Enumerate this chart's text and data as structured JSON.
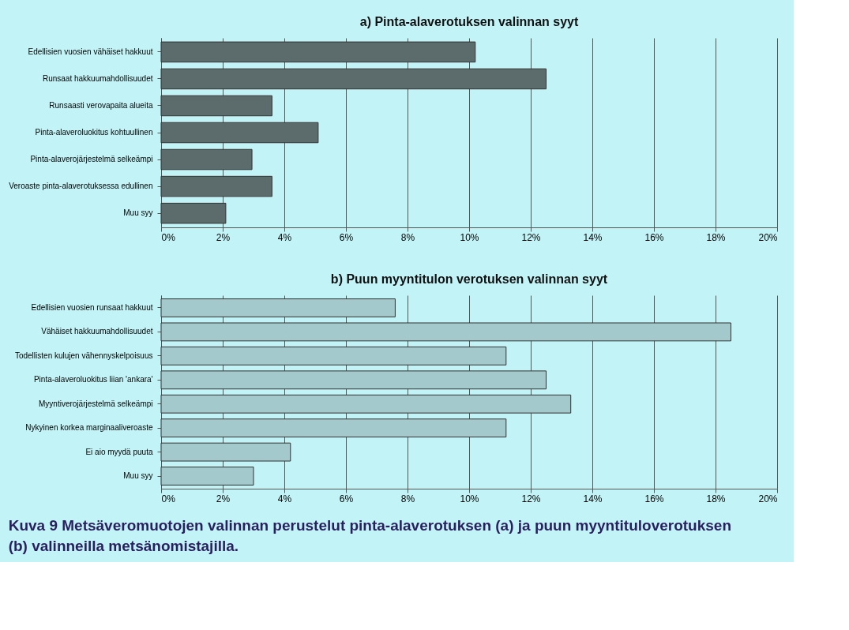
{
  "chart_data": [
    {
      "type": "bar",
      "orientation": "horizontal",
      "title": "a) Pinta-alaverotuksen valinnan syyt",
      "categories": [
        "Edellisien vuosien vähäiset hakkuut",
        "Runsaat hakkuumahdollisuudet",
        "Runsaasti verovapaita alueita",
        "Pinta-alaveroluokitus kohtuullinen",
        "Pinta-alaverojärjestelmä selkeämpi",
        "Veroaste pinta-alaverotuksessa edullinen",
        "Muu syy"
      ],
      "values": [
        10.2,
        12.5,
        3.6,
        5.1,
        2.95,
        3.6,
        2.1
      ],
      "color": "#5c6b6b",
      "xlim": [
        0,
        20
      ],
      "xticks": [
        {
          "value": 0,
          "label": "0%"
        },
        {
          "value": 2,
          "label": "2%"
        },
        {
          "value": 4,
          "label": "4%"
        },
        {
          "value": 6,
          "label": "6%"
        },
        {
          "value": 8,
          "label": "8%"
        },
        {
          "value": 10,
          "label": "10%"
        },
        {
          "value": 12,
          "label": "12%"
        },
        {
          "value": 14,
          "label": "14%"
        },
        {
          "value": 16,
          "label": "16%"
        },
        {
          "value": 18,
          "label": "18%"
        },
        {
          "value": 20,
          "label": "20%"
        }
      ],
      "grid": "x"
    },
    {
      "type": "bar",
      "orientation": "horizontal",
      "title": "b) Puun myyntitulon verotuksen valinnan syyt",
      "categories": [
        "Edellisien vuosien runsaat hakkuut",
        "Vähäiset hakkuumahdollisuudet",
        "Todellisten kulujen vähennyskelpoisuus",
        "Pinta-alaveroluokitus liian 'ankara'",
        "Myyntiverojärjestelmä selkeämpi",
        "Nykyinen korkea marginaaliveroaste",
        "Ei aio myydä puuta",
        "Muu syy"
      ],
      "values": [
        7.6,
        18.5,
        11.2,
        12.5,
        13.3,
        11.2,
        4.2,
        3.0
      ],
      "color": "#a3c9cc",
      "xlim": [
        0,
        20
      ],
      "xticks": [
        {
          "value": 0,
          "label": "0%"
        },
        {
          "value": 2,
          "label": "2%"
        },
        {
          "value": 4,
          "label": "4%"
        },
        {
          "value": 6,
          "label": "6%"
        },
        {
          "value": 8,
          "label": "8%"
        },
        {
          "value": 10,
          "label": "10%"
        },
        {
          "value": 12,
          "label": "12%"
        },
        {
          "value": 14,
          "label": "14%"
        },
        {
          "value": 16,
          "label": "16%"
        },
        {
          "value": 18,
          "label": "18%"
        },
        {
          "value": 20,
          "label": "20%"
        }
      ],
      "grid": "x",
      "annotations": [
        "Kuva 9 Metsäveromuotojen valinnan perustelut pinta-alaverotuksen (a) ja puun myyntituloverotuksen (b) valinneilla metsänomistajilla."
      ]
    }
  ]
}
